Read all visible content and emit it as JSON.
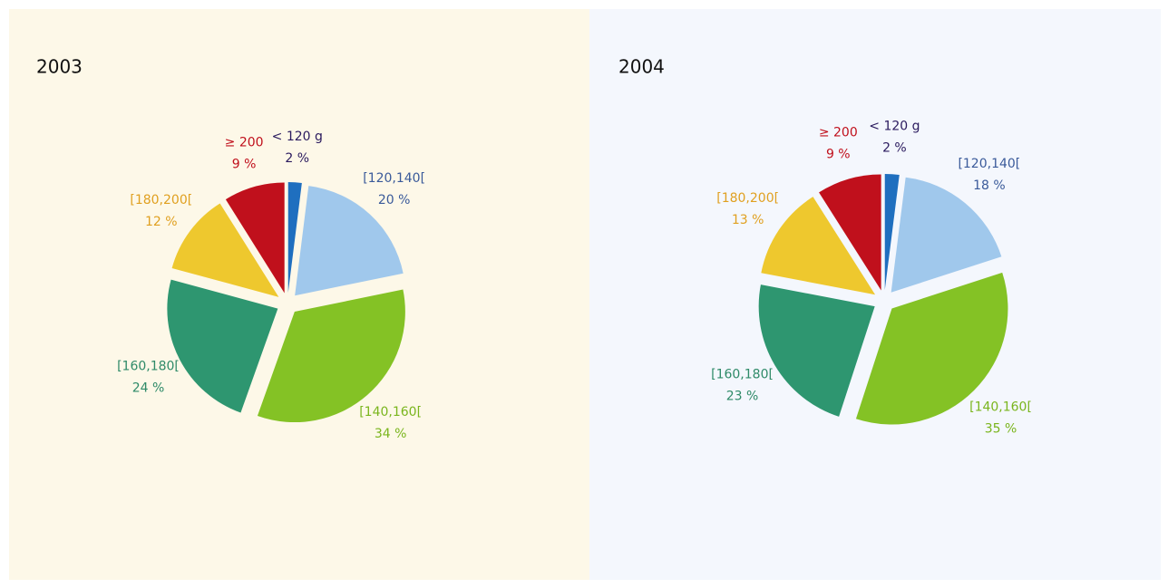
{
  "chart_data": [
    {
      "type": "pie",
      "title": "2003",
      "categories": [
        "< 120 g",
        "[120,140[",
        "[140,160[",
        "[160,180[",
        "[180,200[",
        "≥ 200"
      ],
      "values": [
        2,
        20,
        34,
        24,
        12,
        9
      ],
      "value_labels": [
        "2 %",
        "20 %",
        "34 %",
        "24 %",
        "12 %",
        "9 %"
      ],
      "colors": [
        "#1f6fbf",
        "#a0c8ec",
        "#84c225",
        "#2e9670",
        "#eec82e",
        "#c0101c"
      ],
      "label_colors": [
        "#2a1a5e",
        "#3a5a9a",
        "#7ab51d",
        "#2e8a68",
        "#e0a020",
        "#c0101c"
      ]
    },
    {
      "type": "pie",
      "title": "2004",
      "categories": [
        "< 120 g",
        "[120,140[",
        "[140,160[",
        "[160,180[",
        "[180,200[",
        "≥ 200"
      ],
      "values": [
        2,
        18,
        35,
        23,
        13,
        9
      ],
      "value_labels": [
        "2 %",
        "18 %",
        "35 %",
        "23 %",
        "13 %",
        "9 %"
      ],
      "colors": [
        "#1f6fbf",
        "#a0c8ec",
        "#84c225",
        "#2e9670",
        "#eec82e",
        "#c0101c"
      ],
      "label_colors": [
        "#2a1a5e",
        "#3a5a9a",
        "#7ab51d",
        "#2e8a68",
        "#e0a020",
        "#c0101c"
      ]
    }
  ]
}
